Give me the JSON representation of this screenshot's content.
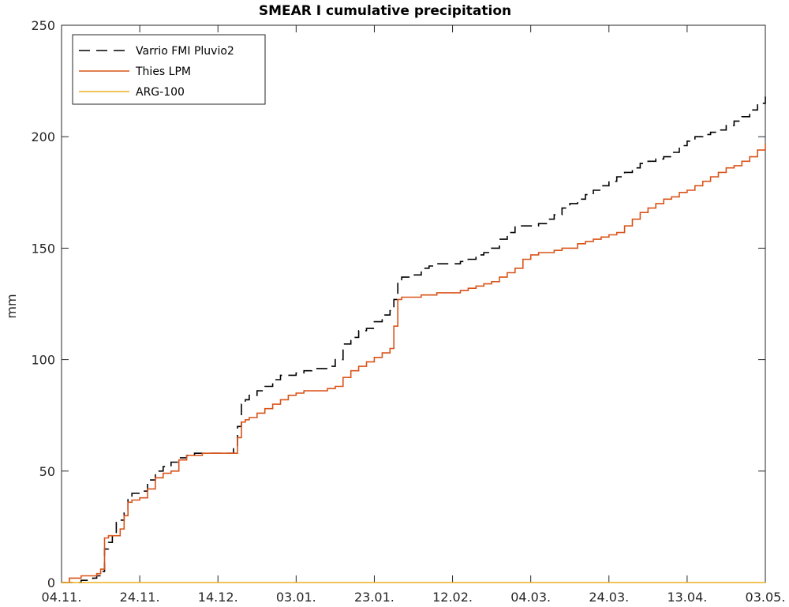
{
  "chart_data": {
    "type": "line",
    "title": "SMEAR I cumulative precipitation",
    "xlabel": "",
    "ylabel": "mm",
    "x_tick_labels": [
      "04.11.",
      "24.11.",
      "14.12.",
      "03.01.",
      "23.01.",
      "12.02.",
      "04.03.",
      "24.03.",
      "13.04.",
      "03.05."
    ],
    "x_tick_days": [
      0,
      20,
      40,
      60,
      80,
      100,
      120,
      140,
      160,
      180
    ],
    "xlim": [
      0,
      180
    ],
    "ylim": [
      0,
      250
    ],
    "y_ticks": [
      0,
      50,
      100,
      150,
      200,
      250
    ],
    "grid": false,
    "legend_position": "top-left",
    "series": [
      {
        "name": "Varrio FMI Pluvio2",
        "color": "#000000",
        "dash": "dashed",
        "x": [
          0,
          2,
          5,
          8,
          9,
          10,
          11,
          12,
          13,
          14,
          15,
          16,
          17,
          18,
          20,
          22,
          24,
          26,
          28,
          30,
          32,
          34,
          36,
          38,
          40,
          42,
          44,
          45,
          46,
          47,
          48,
          50,
          52,
          54,
          56,
          58,
          60,
          62,
          64,
          66,
          68,
          70,
          72,
          74,
          76,
          78,
          80,
          82,
          84,
          85,
          86,
          87,
          90,
          92,
          94,
          96,
          98,
          100,
          102,
          104,
          106,
          108,
          110,
          112,
          114,
          116,
          118,
          120,
          122,
          124,
          126,
          128,
          130,
          132,
          134,
          136,
          138,
          140,
          142,
          144,
          146,
          148,
          150,
          152,
          154,
          156,
          158,
          160,
          162,
          164,
          166,
          168,
          170,
          172,
          174,
          176,
          178,
          180
        ],
        "y": [
          0,
          0,
          1,
          2,
          3,
          5,
          15,
          18,
          22,
          27,
          28,
          32,
          38,
          40,
          41,
          46,
          50,
          52,
          54,
          56,
          57,
          58,
          58,
          58,
          58,
          58,
          60,
          70,
          80,
          82,
          84,
          86,
          88,
          91,
          93,
          93,
          94,
          95,
          96,
          96,
          97,
          100,
          107,
          110,
          113,
          114,
          117,
          120,
          122,
          127,
          135,
          137,
          138,
          141,
          142,
          143,
          143,
          143,
          144,
          145,
          147,
          148,
          150,
          154,
          157,
          160,
          160,
          160,
          161,
          163,
          165,
          168,
          170,
          172,
          174,
          176,
          178,
          180,
          182,
          184,
          186,
          188,
          189,
          190,
          191,
          193,
          196,
          198,
          200,
          201,
          202,
          203,
          205,
          207,
          209,
          212,
          215,
          218
        ]
      },
      {
        "name": "Thies LPM",
        "color": "#D95319",
        "dash": "solid",
        "x": [
          0,
          2,
          5,
          8,
          9,
          10,
          11,
          12,
          13,
          14,
          15,
          16,
          17,
          18,
          20,
          22,
          24,
          26,
          28,
          30,
          32,
          34,
          36,
          38,
          40,
          42,
          44,
          45,
          46,
          47,
          48,
          50,
          52,
          54,
          56,
          58,
          60,
          62,
          64,
          66,
          68,
          70,
          72,
          74,
          76,
          78,
          80,
          82,
          84,
          85,
          86,
          87,
          90,
          92,
          94,
          96,
          98,
          100,
          102,
          104,
          106,
          108,
          110,
          112,
          114,
          116,
          118,
          120,
          122,
          124,
          126,
          128,
          130,
          132,
          134,
          136,
          138,
          140,
          142,
          144,
          146,
          148,
          150,
          152,
          154,
          156,
          158,
          160,
          162,
          164,
          166,
          168,
          170,
          172,
          174,
          176,
          178,
          180
        ],
        "y": [
          0,
          2,
          3,
          3,
          4,
          6,
          20,
          21,
          21,
          21,
          24,
          30,
          36,
          37,
          38,
          42,
          47,
          49,
          50,
          55,
          57,
          57,
          58,
          58,
          58,
          58,
          58,
          65,
          72,
          73,
          74,
          76,
          78,
          80,
          82,
          84,
          85,
          86,
          86,
          86,
          87,
          88,
          92,
          95,
          97,
          99,
          101,
          103,
          105,
          115,
          127,
          128,
          128,
          129,
          129,
          130,
          130,
          130,
          131,
          132,
          133,
          134,
          135,
          137,
          139,
          141,
          145,
          147,
          148,
          148,
          149,
          150,
          150,
          152,
          153,
          154,
          155,
          156,
          157,
          160,
          163,
          166,
          168,
          170,
          172,
          173,
          175,
          176,
          178,
          180,
          182,
          184,
          186,
          187,
          189,
          191,
          194,
          197
        ]
      },
      {
        "name": "ARG-100",
        "color": "#EDB120",
        "dash": "solid",
        "x": [
          0,
          180
        ],
        "y": [
          0,
          0
        ]
      }
    ]
  }
}
